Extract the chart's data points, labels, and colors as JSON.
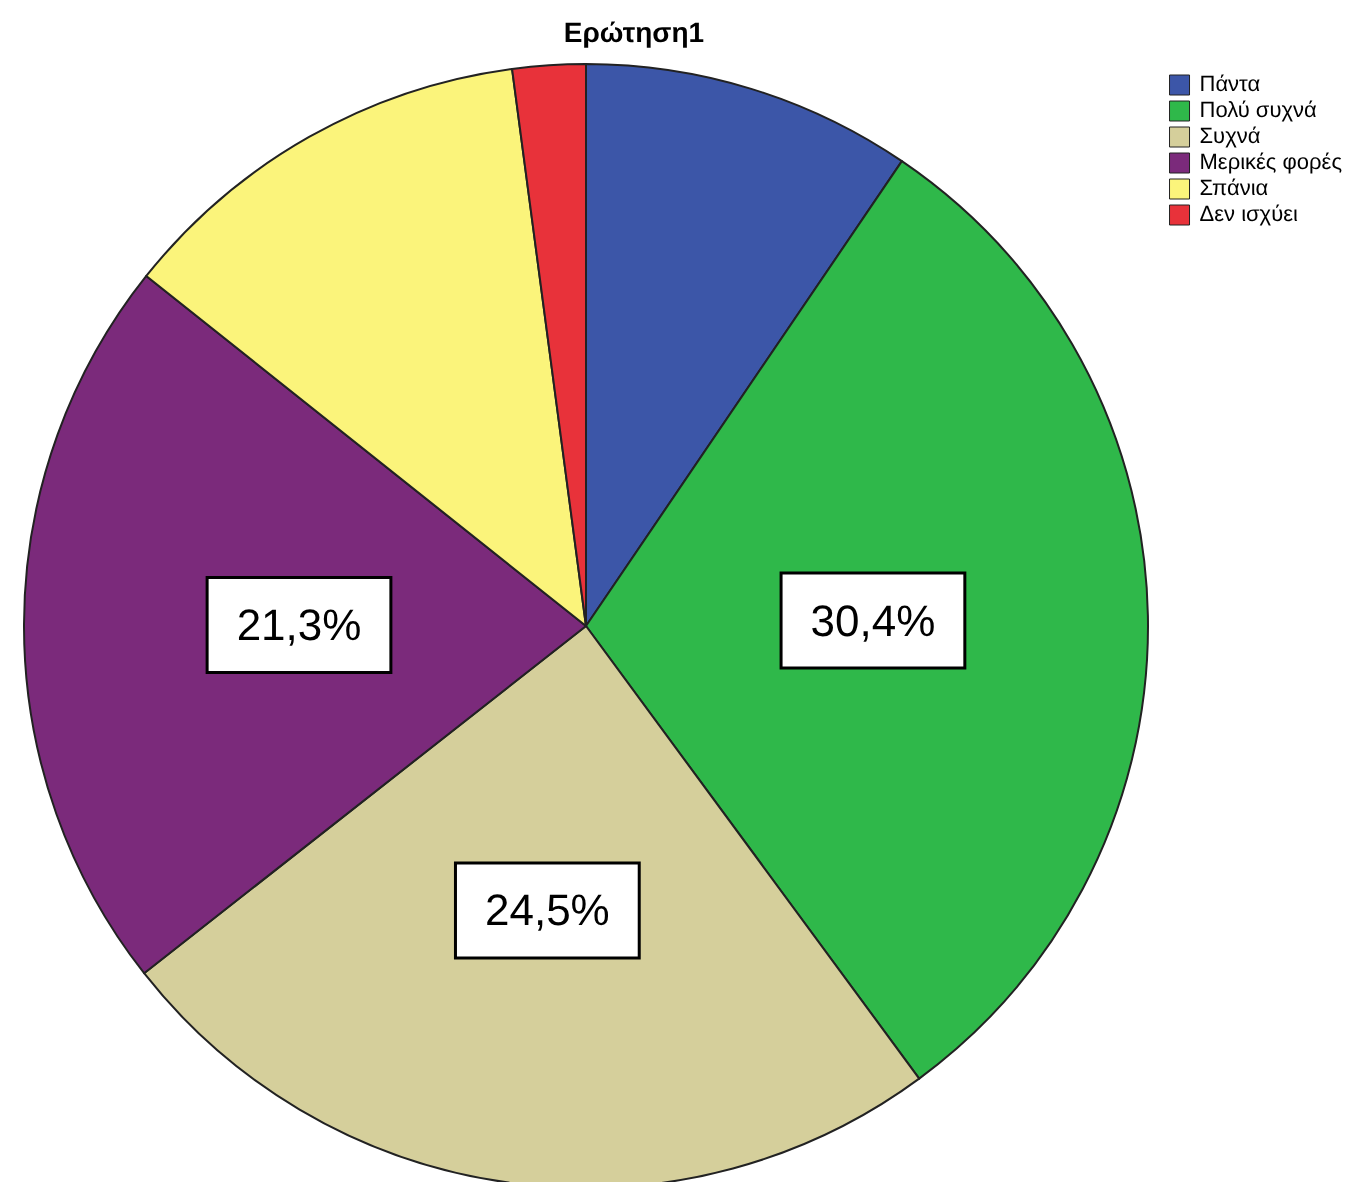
{
  "chart_data": {
    "type": "pie",
    "title": "Ερώτηση1",
    "categories": [
      "Πάντα",
      "Πολύ συχνά",
      "Συχνά",
      "Μερικές φορές",
      "Σπάνια",
      "Δεν ισχύει"
    ],
    "values": [
      9.5,
      30.4,
      24.5,
      21.3,
      12.2,
      2.1
    ],
    "colors": [
      "#3c56a8",
      "#2fb84a",
      "#d5cf9b",
      "#7b2a7b",
      "#fbf47b",
      "#e8323a"
    ],
    "value_labels": [
      null,
      "30,4%",
      "24,5%",
      "21,3%",
      null,
      null
    ],
    "legend": "top right"
  }
}
